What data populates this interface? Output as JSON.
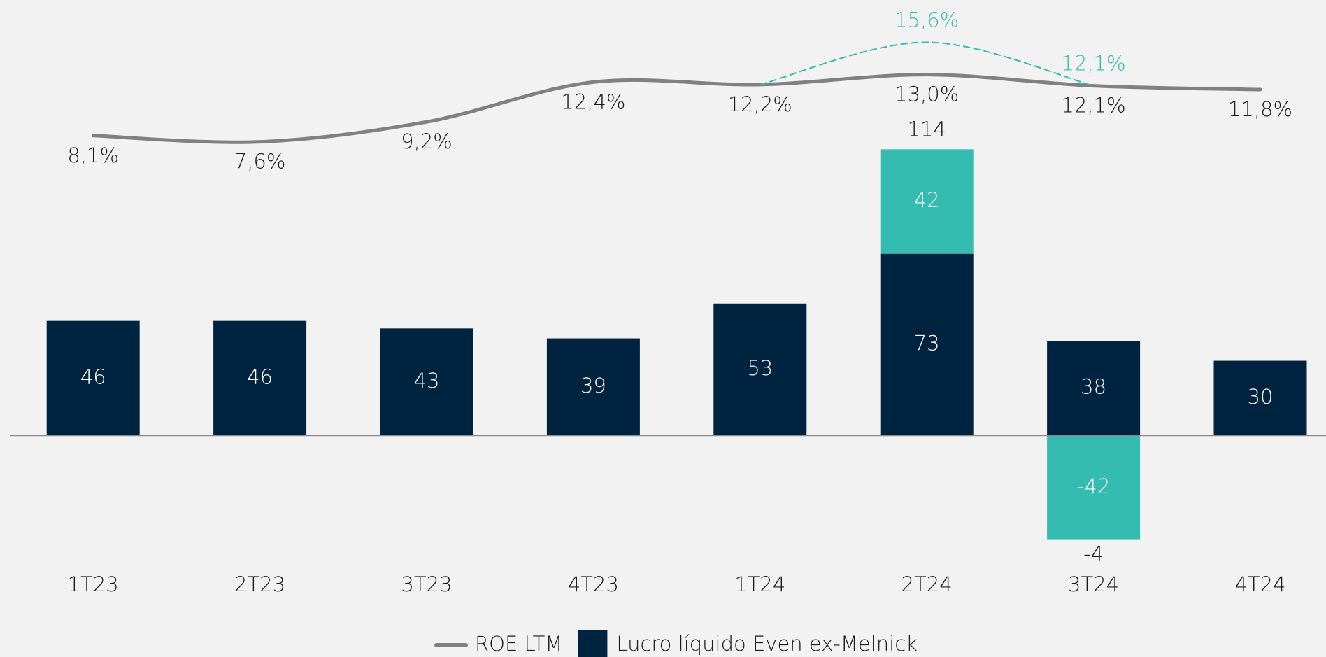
{
  "chart_data": {
    "type": "bar",
    "categories": [
      "1T23",
      "2T23",
      "3T23",
      "4T23",
      "1T24",
      "2T24",
      "3T24",
      "4T24"
    ],
    "series": [
      {
        "name": "ROE LTM",
        "type": "line",
        "axis": "y2",
        "color": "#808080",
        "values": [
          8.1,
          7.6,
          9.2,
          12.4,
          12.2,
          13.0,
          12.1,
          11.8
        ],
        "value_labels": [
          "8,1%",
          "7,6%",
          "9,2%",
          "12,4%",
          "12,2%",
          "13,0%",
          "12,1%",
          "11,8%"
        ]
      },
      {
        "name": "Lucro líquido Even ex-Melnick",
        "type": "bar",
        "color": "#00233f",
        "values": [
          46,
          46,
          43,
          39,
          53,
          73,
          38,
          30
        ]
      },
      {
        "type": "bar",
        "color": "#34bcb0",
        "values": [
          null,
          null,
          null,
          null,
          null,
          42,
          -42,
          null
        ]
      },
      {
        "type": "line",
        "axis": "y2",
        "dashed": true,
        "color": "#34bcb0",
        "values": [
          null,
          null,
          null,
          null,
          12.2,
          15.6,
          12.1,
          null
        ],
        "value_labels": [
          null,
          null,
          null,
          null,
          null,
          "15,6%",
          "12,1%",
          null
        ]
      }
    ],
    "totals": [
      null,
      null,
      null,
      null,
      null,
      114,
      -4,
      null
    ],
    "ylim": [
      -50,
      175
    ],
    "y2lim": [
      -26,
      19
    ]
  }
}
